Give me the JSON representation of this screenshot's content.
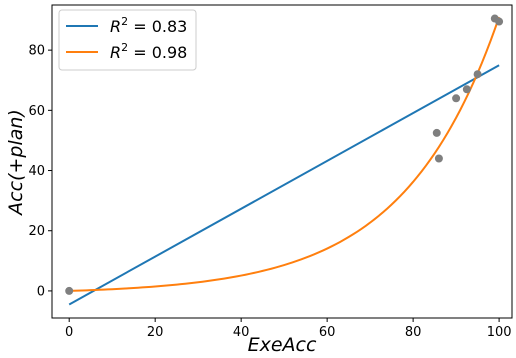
{
  "chart_data": {
    "type": "scatter",
    "xlabel": "ExeAcc",
    "ylabel": "Acc(+plan)",
    "xlim": [
      -4,
      103
    ],
    "ylim": [
      -9,
      95
    ],
    "x_ticks": [
      0,
      20,
      40,
      60,
      80,
      100
    ],
    "y_ticks": [
      0,
      20,
      40,
      60,
      80
    ],
    "grid": false,
    "legend_position": "top-left",
    "points": {
      "color": "#7f7f7f",
      "x": [
        0,
        85.5,
        86,
        90,
        92.5,
        95,
        99,
        100
      ],
      "y": [
        0,
        52.5,
        44,
        64,
        67,
        72,
        90.5,
        89.5
      ]
    },
    "series": [
      {
        "name": "R^2 = 0.83",
        "legend_base": "R",
        "legend_sup": "2",
        "legend_rest": " = 0.83",
        "kind": "linear",
        "color": "#1f77b4",
        "x": [
          0,
          100
        ],
        "y": [
          -4.5,
          75
        ]
      },
      {
        "name": "R^2 = 0.98",
        "legend_base": "R",
        "legend_sup": "2",
        "legend_rest": " = 0.98",
        "kind": "exponential",
        "color": "#ff7f0e",
        "x": [
          0,
          10,
          20,
          30,
          40,
          50,
          60,
          65,
          70,
          75,
          80,
          85,
          90,
          95,
          100
        ],
        "y": [
          0,
          0.03,
          0.2,
          0.6,
          2,
          5.5,
          12.5,
          18,
          25,
          32.5,
          41,
          53,
          64,
          77,
          91
        ]
      }
    ]
  }
}
